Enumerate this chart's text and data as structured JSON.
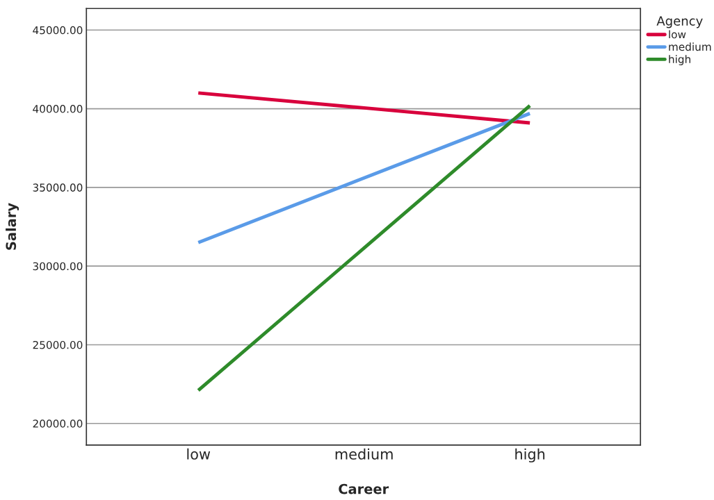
{
  "chart_data": {
    "type": "line",
    "xlabel": "Career",
    "ylabel": "Salary",
    "legend_title": "Agency",
    "categories": [
      "low",
      "medium",
      "high"
    ],
    "series": [
      {
        "name": "low",
        "color": "#d8003c",
        "values": [
          41000,
          40050,
          39100
        ]
      },
      {
        "name": "medium",
        "color": "#5a9be8",
        "values": [
          31500,
          35600,
          39700
        ]
      },
      {
        "name": "high",
        "color": "#2e8b2a",
        "values": [
          22100,
          31150,
          40200
        ]
      }
    ],
    "ylim": [
      18630,
      46370
    ],
    "yticks": [
      {
        "value": 20000,
        "label": "20000.00"
      },
      {
        "value": 25000,
        "label": "25000.00"
      },
      {
        "value": 30000,
        "label": "30000.00"
      },
      {
        "value": 35000,
        "label": "35000.00"
      },
      {
        "value": 40000,
        "label": "40000.00"
      },
      {
        "value": 45000,
        "label": "45000.00"
      }
    ],
    "grid": "y",
    "legend": "top right",
    "marker": "none",
    "line_style": "solid"
  }
}
